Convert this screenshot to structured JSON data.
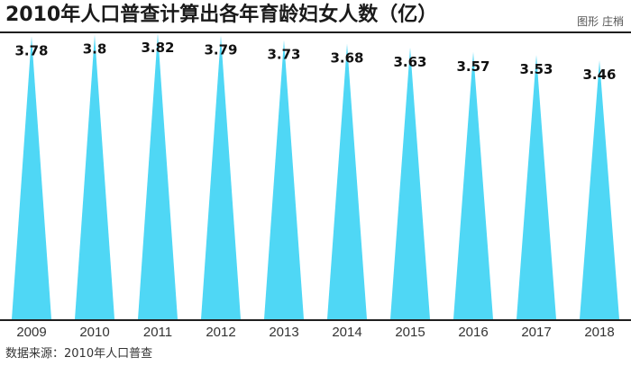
{
  "header": {
    "title": "2010年人口普查计算出各年育龄妇女人数（亿）",
    "credit": "图形 庄梢"
  },
  "footer": {
    "source": "数据来源：2010年人口普查"
  },
  "colors": {
    "bar": "#4fd7f5",
    "rule": "#1f1f1f",
    "label": "#111111"
  },
  "chart_data": {
    "type": "bar",
    "mark_shape": "triangle-spike",
    "categories": [
      "2009",
      "2010",
      "2011",
      "2012",
      "2013",
      "2014",
      "2015",
      "2016",
      "2017",
      "2018"
    ],
    "values": [
      3.78,
      3.8,
      3.82,
      3.79,
      3.73,
      3.68,
      3.63,
      3.57,
      3.53,
      3.46
    ],
    "value_labels": [
      "3.78",
      "3.8",
      "3.82",
      "3.79",
      "3.73",
      "3.68",
      "3.63",
      "3.57",
      "3.53",
      "3.46"
    ],
    "title": "2010年人口普查计算出各年育龄妇女人数（亿）",
    "xlabel": "",
    "ylabel": "",
    "ylim": [
      0,
      3.82
    ],
    "grid": false,
    "legend": "none"
  }
}
